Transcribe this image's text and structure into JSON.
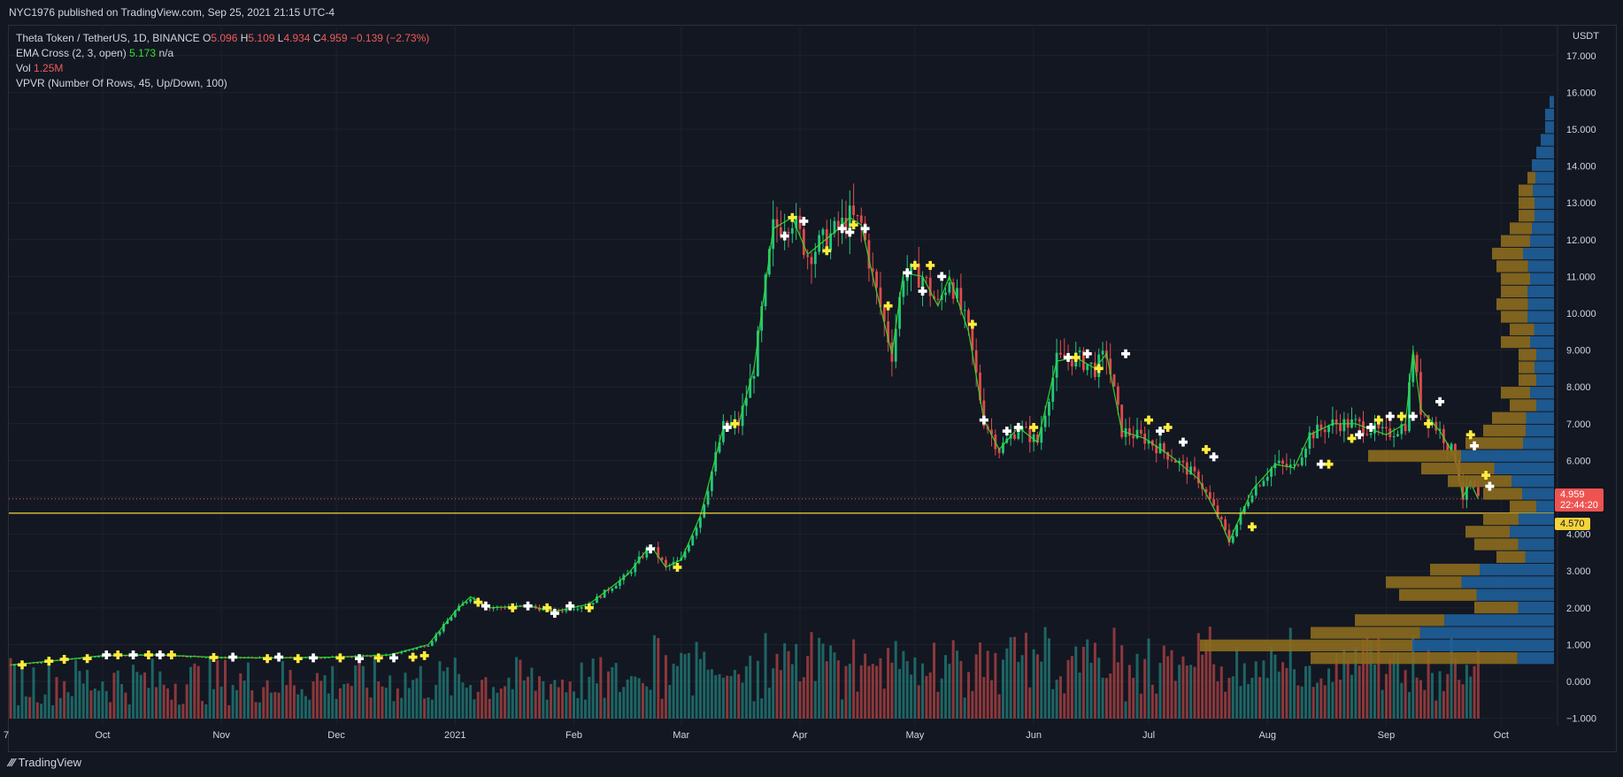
{
  "header": {
    "published": "NYC1976 published on TradingView.com, Sep 25, 2021 21:15 UTC-4"
  },
  "legend": {
    "symbol": "Theta Token / TetherUS, 1D, BINANCE",
    "o_label": "O",
    "o_value": "5.096",
    "h_label": "H",
    "h_value": "5.109",
    "l_label": "L",
    "l_value": "4.934",
    "c_label": "C",
    "c_value": "4.959",
    "change": "−0.139 (−2.73%)",
    "ema_label": "EMA Cross (2, 3, open)",
    "ema_value": "5.173",
    "ema_na": "n/a",
    "vol_label": "Vol",
    "vol_value": "1.25M",
    "vpvr_label": "VPVR (Number Of Rows, 45, Up/Down, 100)"
  },
  "price_axis": {
    "currency": "USDT",
    "last_price": "4.959",
    "countdown": "22:44:20",
    "level_price": "4.570"
  },
  "footer": {
    "brand": "TradingView"
  },
  "colors": {
    "background": "#131722",
    "up": "#26a69a",
    "down": "#ef5350",
    "candle_up": "#22c77a",
    "candle_down": "#e04b4b",
    "ema": "#35e02b",
    "level": "#f5d33a",
    "vp_up": "#1f5f9a",
    "vp_down": "#8c6c1e",
    "cross_yellow": "#ffec3d",
    "cross_white": "#ffffff"
  },
  "chart_data": {
    "type": "candlestick",
    "title": "Theta Token / TetherUS, 1D, BINANCE",
    "ylim": [
      -1,
      17.5
    ],
    "y_ticks": [
      "−1.000",
      "0.000",
      "1.000",
      "2.000",
      "3.000",
      "4.000",
      "5.000",
      "6.000",
      "7.000",
      "8.000",
      "9.000",
      "10.000",
      "11.000",
      "12.000",
      "13.000",
      "14.000",
      "15.000",
      "16.000",
      "17.000"
    ],
    "x_ticks": [
      "7",
      "Oct",
      "Nov",
      "Dec",
      "2021",
      "Feb",
      "Mar",
      "Apr",
      "May",
      "Jun",
      "Jul",
      "Aug",
      "Sep",
      "Oct"
    ],
    "horizontal_level": 4.57,
    "last_close": 4.959,
    "close_path": [
      [
        "2020-09-07",
        0.45
      ],
      [
        "2020-09-20",
        0.58
      ],
      [
        "2020-10-01",
        0.7
      ],
      [
        "2020-10-15",
        0.72
      ],
      [
        "2020-11-01",
        0.65
      ],
      [
        "2020-11-15",
        0.64
      ],
      [
        "2020-12-01",
        0.66
      ],
      [
        "2020-12-15",
        0.72
      ],
      [
        "2020-12-25",
        1.0
      ],
      [
        "2021-01-01",
        1.9
      ],
      [
        "2021-01-05",
        2.3
      ],
      [
        "2021-01-10",
        2.0
      ],
      [
        "2021-01-20",
        2.05
      ],
      [
        "2021-01-27",
        1.9
      ],
      [
        "2021-02-05",
        2.1
      ],
      [
        "2021-02-15",
        2.9
      ],
      [
        "2021-02-21",
        3.7
      ],
      [
        "2021-02-25",
        3.1
      ],
      [
        "2021-03-01",
        3.3
      ],
      [
        "2021-03-06",
        4.5
      ],
      [
        "2021-03-12",
        6.9
      ],
      [
        "2021-03-16",
        7.0
      ],
      [
        "2021-03-20",
        8.5
      ],
      [
        "2021-03-25",
        12.3
      ],
      [
        "2021-03-30",
        12.6
      ],
      [
        "2021-04-03",
        11.6
      ],
      [
        "2021-04-10",
        12.2
      ],
      [
        "2021-04-14",
        12.6
      ],
      [
        "2021-04-17",
        12.4
      ],
      [
        "2021-04-20",
        11.0
      ],
      [
        "2021-04-25",
        8.9
      ],
      [
        "2021-04-28",
        11.1
      ],
      [
        "2021-05-03",
        11.0
      ],
      [
        "2021-05-07",
        10.2
      ],
      [
        "2021-05-10",
        11.0
      ],
      [
        "2021-05-15",
        9.5
      ],
      [
        "2021-05-19",
        7.1
      ],
      [
        "2021-05-23",
        6.3
      ],
      [
        "2021-05-28",
        6.9
      ],
      [
        "2021-06-02",
        6.5
      ],
      [
        "2021-06-07",
        8.7
      ],
      [
        "2021-06-12",
        8.8
      ],
      [
        "2021-06-17",
        8.5
      ],
      [
        "2021-06-20",
        8.9
      ],
      [
        "2021-06-24",
        6.8
      ],
      [
        "2021-06-30",
        6.6
      ],
      [
        "2021-07-07",
        6.1
      ],
      [
        "2021-07-14",
        5.5
      ],
      [
        "2021-07-20",
        4.3
      ],
      [
        "2021-07-22",
        3.8
      ],
      [
        "2021-07-28",
        5.2
      ],
      [
        "2021-08-03",
        5.9
      ],
      [
        "2021-08-08",
        5.8
      ],
      [
        "2021-08-12",
        6.7
      ],
      [
        "2021-08-18",
        7.0
      ],
      [
        "2021-08-24",
        7.0
      ],
      [
        "2021-09-01",
        6.7
      ],
      [
        "2021-09-06",
        7.0
      ],
      [
        "2021-09-08",
        9.0
      ],
      [
        "2021-09-10",
        7.4
      ],
      [
        "2021-09-15",
        6.8
      ],
      [
        "2021-09-19",
        6.1
      ],
      [
        "2021-09-21",
        5.0
      ],
      [
        "2021-09-23",
        5.4
      ],
      [
        "2021-09-25",
        4.96
      ]
    ],
    "signals": [
      [
        "2020-09-10",
        0.45,
        "yellow"
      ],
      [
        "2020-09-17",
        0.55,
        "yellow"
      ],
      [
        "2020-09-21",
        0.6,
        "yellow"
      ],
      [
        "2020-09-27",
        0.62,
        "yellow"
      ],
      [
        "2020-10-02",
        0.72,
        "white"
      ],
      [
        "2020-10-05",
        0.72,
        "yellow"
      ],
      [
        "2020-10-09",
        0.72,
        "white"
      ],
      [
        "2020-10-13",
        0.72,
        "yellow"
      ],
      [
        "2020-10-16",
        0.72,
        "white"
      ],
      [
        "2020-10-19",
        0.72,
        "yellow"
      ],
      [
        "2020-10-30",
        0.65,
        "yellow"
      ],
      [
        "2020-11-04",
        0.66,
        "white"
      ],
      [
        "2020-11-13",
        0.62,
        "yellow"
      ],
      [
        "2020-11-16",
        0.66,
        "white"
      ],
      [
        "2020-11-21",
        0.62,
        "yellow"
      ],
      [
        "2020-11-25",
        0.64,
        "white"
      ],
      [
        "2020-12-02",
        0.64,
        "yellow"
      ],
      [
        "2020-12-07",
        0.62,
        "white"
      ],
      [
        "2020-12-12",
        0.64,
        "yellow"
      ],
      [
        "2020-12-16",
        0.64,
        "white"
      ],
      [
        "2020-12-21",
        0.66,
        "yellow"
      ],
      [
        "2020-12-24",
        0.7,
        "yellow"
      ],
      [
        "2021-01-07",
        2.15,
        "yellow"
      ],
      [
        "2021-01-09",
        2.05,
        "white"
      ],
      [
        "2021-01-16",
        2.0,
        "yellow"
      ],
      [
        "2021-01-20",
        2.05,
        "white"
      ],
      [
        "2021-01-25",
        2.0,
        "yellow"
      ],
      [
        "2021-01-27",
        1.85,
        "white"
      ],
      [
        "2021-01-31",
        2.05,
        "white"
      ],
      [
        "2021-02-05",
        2.0,
        "yellow"
      ],
      [
        "2021-02-21",
        3.6,
        "white"
      ],
      [
        "2021-02-28",
        3.1,
        "yellow"
      ],
      [
        "2021-03-13",
        6.9,
        "white"
      ],
      [
        "2021-03-15",
        7.0,
        "yellow"
      ],
      [
        "2021-03-28",
        12.1,
        "white"
      ],
      [
        "2021-03-30",
        12.6,
        "yellow"
      ],
      [
        "2021-04-02",
        12.5,
        "white"
      ],
      [
        "2021-04-08",
        11.7,
        "yellow"
      ],
      [
        "2021-04-12",
        12.3,
        "white"
      ],
      [
        "2021-04-14",
        12.2,
        "white"
      ],
      [
        "2021-04-15",
        12.4,
        "yellow"
      ],
      [
        "2021-04-18",
        12.3,
        "white"
      ],
      [
        "2021-04-24",
        10.2,
        "yellow"
      ],
      [
        "2021-04-29",
        11.1,
        "white"
      ],
      [
        "2021-05-01",
        11.3,
        "yellow"
      ],
      [
        "2021-05-03",
        10.6,
        "white"
      ],
      [
        "2021-05-05",
        11.3,
        "yellow"
      ],
      [
        "2021-05-08",
        11.0,
        "white"
      ],
      [
        "2021-05-16",
        9.7,
        "yellow"
      ],
      [
        "2021-05-19",
        7.1,
        "white"
      ],
      [
        "2021-05-25",
        6.8,
        "white"
      ],
      [
        "2021-05-28",
        6.9,
        "white"
      ],
      [
        "2021-06-01",
        6.9,
        "yellow"
      ],
      [
        "2021-06-10",
        8.8,
        "white"
      ],
      [
        "2021-06-12",
        8.8,
        "yellow"
      ],
      [
        "2021-06-15",
        8.9,
        "white"
      ],
      [
        "2021-06-18",
        8.5,
        "yellow"
      ],
      [
        "2021-06-25",
        8.9,
        "white"
      ],
      [
        "2021-07-01",
        7.1,
        "yellow"
      ],
      [
        "2021-07-04",
        6.8,
        "white"
      ],
      [
        "2021-07-06",
        6.9,
        "yellow"
      ],
      [
        "2021-07-10",
        6.5,
        "white"
      ],
      [
        "2021-07-16",
        6.3,
        "yellow"
      ],
      [
        "2021-07-18",
        6.1,
        "white"
      ],
      [
        "2021-07-28",
        4.2,
        "yellow"
      ],
      [
        "2021-08-15",
        5.9,
        "white"
      ],
      [
        "2021-08-17",
        5.9,
        "yellow"
      ],
      [
        "2021-08-23",
        6.6,
        "yellow"
      ],
      [
        "2021-08-25",
        6.7,
        "white"
      ],
      [
        "2021-08-28",
        6.9,
        "white"
      ],
      [
        "2021-08-30",
        7.1,
        "yellow"
      ],
      [
        "2021-09-02",
        7.2,
        "white"
      ],
      [
        "2021-09-05",
        7.2,
        "yellow"
      ],
      [
        "2021-09-08",
        7.2,
        "white"
      ],
      [
        "2021-09-12",
        7.0,
        "yellow"
      ],
      [
        "2021-09-15",
        7.6,
        "white"
      ],
      [
        "2021-09-23",
        6.7,
        "yellow"
      ],
      [
        "2021-09-24",
        6.4,
        "white"
      ],
      [
        "2021-09-27",
        5.6,
        "yellow"
      ],
      [
        "2021-09-28",
        5.3,
        "white"
      ]
    ],
    "volume_profile": {
      "rows": 45,
      "price_range": [
        0.45,
        15.9
      ],
      "total": [
        0.55,
        0.8,
        0.55,
        0.45,
        0.18,
        0.35,
        0.38,
        0.28,
        0.13,
        0.18,
        0.2,
        0.16,
        0.1,
        0.16,
        0.24,
        0.3,
        0.42,
        0.2,
        0.16,
        0.14,
        0.1,
        0.12,
        0.08,
        0.08,
        0.08,
        0.12,
        0.1,
        0.12,
        0.13,
        0.12,
        0.12,
        0.13,
        0.14,
        0.12,
        0.1,
        0.08,
        0.08,
        0.08,
        0.06,
        0.05,
        0.04,
        0.03,
        0.02,
        0.02,
        0.01
      ],
      "down_share": [
        0.85,
        0.6,
        0.45,
        0.45,
        0.55,
        0.5,
        0.45,
        0.4,
        0.5,
        0.55,
        0.5,
        0.5,
        0.6,
        0.55,
        0.6,
        0.55,
        0.5,
        0.65,
        0.6,
        0.55,
        0.6,
        0.55,
        0.5,
        0.45,
        0.5,
        0.55,
        0.55,
        0.5,
        0.55,
        0.5,
        0.55,
        0.55,
        0.5,
        0.55,
        0.5,
        0.45,
        0.45,
        0.4,
        0.3,
        0.0,
        0.0,
        0.0,
        0.0,
        0.0,
        0.0
      ]
    }
  }
}
